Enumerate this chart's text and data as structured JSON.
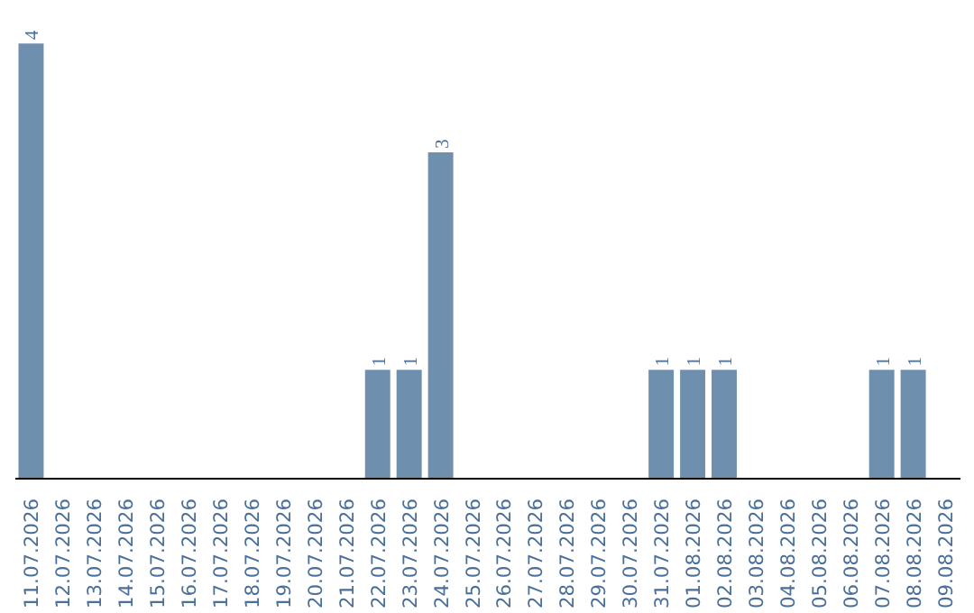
{
  "chart_data": {
    "type": "bar",
    "categories": [
      "11.07.2026",
      "12.07.2026",
      "13.07.2026",
      "14.07.2026",
      "15.07.2026",
      "16.07.2026",
      "17.07.2026",
      "18.07.2026",
      "19.07.2026",
      "20.07.2026",
      "21.07.2026",
      "22.07.2026",
      "23.07.2026",
      "24.07.2026",
      "25.07.2026",
      "26.07.2026",
      "27.07.2026",
      "28.07.2026",
      "29.07.2026",
      "30.07.2026",
      "31.07.2026",
      "01.08.2026",
      "02.08.2026",
      "03.08.2026",
      "04.08.2026",
      "05.08.2026",
      "06.08.2026",
      "07.08.2026",
      "08.08.2026",
      "09.08.2026"
    ],
    "values": [
      4,
      0,
      0,
      0,
      0,
      0,
      0,
      0,
      0,
      0,
      0,
      1,
      1,
      3,
      0,
      0,
      0,
      0,
      0,
      0,
      1,
      1,
      1,
      0,
      0,
      0,
      0,
      1,
      1,
      0
    ],
    "value_labels": [
      "4",
      null,
      null,
      null,
      null,
      null,
      null,
      null,
      null,
      null,
      null,
      "1",
      "1",
      "3",
      null,
      null,
      null,
      null,
      null,
      null,
      "1",
      "1",
      "1",
      null,
      null,
      null,
      null,
      "1",
      "1",
      null
    ],
    "color": "#6f8faf",
    "grid": false,
    "tick_labels": "x"
  }
}
